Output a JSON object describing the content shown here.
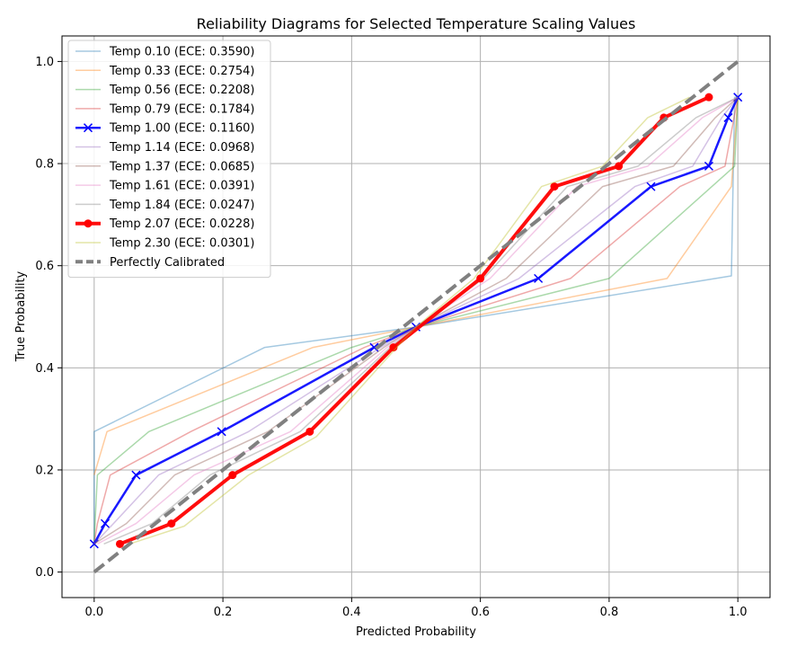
{
  "chart_data": {
    "type": "line",
    "title": "Reliability Diagrams for Selected Temperature Scaling Values",
    "xlabel": "Predicted Probability",
    "ylabel": "True Probability",
    "xlim": [
      -0.05,
      1.05
    ],
    "ylim": [
      -0.05,
      1.05
    ],
    "xticks": [
      "0.0",
      "0.2",
      "0.4",
      "0.6",
      "0.8",
      "1.0"
    ],
    "yticks": [
      "0.0",
      "0.2",
      "0.4",
      "0.6",
      "0.8",
      "1.0"
    ],
    "grid": true,
    "legend_position": "top-left",
    "series": [
      {
        "name": "Temp 0.10 (ECE: 0.3590)",
        "color": "#1f77b4",
        "alpha": 0.4,
        "width": 1.5,
        "marker": "none",
        "x": [
          0.0,
          0.0,
          0.0,
          0.265,
          0.5,
          0.99,
          0.995,
          1.0
        ],
        "y": [
          0.055,
          0.09,
          0.275,
          0.44,
          0.48,
          0.58,
          0.93,
          0.93
        ]
      },
      {
        "name": "Temp 0.33 (ECE: 0.2754)",
        "color": "#ff7f0e",
        "alpha": 0.4,
        "width": 1.5,
        "marker": "none",
        "x": [
          0.0,
          0.02,
          0.34,
          0.5,
          0.89,
          0.99,
          1.0
        ],
        "y": [
          0.19,
          0.275,
          0.44,
          0.48,
          0.575,
          0.755,
          0.93
        ]
      },
      {
        "name": "Temp 0.56 (ECE: 0.2208)",
        "color": "#2ca02c",
        "alpha": 0.4,
        "width": 1.5,
        "marker": "none",
        "x": [
          0.0,
          0.005,
          0.085,
          0.4,
          0.5,
          0.8,
          0.995,
          1.0
        ],
        "y": [
          0.06,
          0.19,
          0.275,
          0.44,
          0.48,
          0.575,
          0.795,
          0.93
        ]
      },
      {
        "name": "Temp 0.79 (ECE: 0.1784)",
        "color": "#d62728",
        "alpha": 0.4,
        "width": 1.5,
        "marker": "none",
        "x": [
          0.0,
          0.005,
          0.025,
          0.15,
          0.42,
          0.5,
          0.74,
          0.91,
          0.98,
          1.0
        ],
        "y": [
          0.055,
          0.095,
          0.19,
          0.275,
          0.44,
          0.48,
          0.575,
          0.755,
          0.795,
          0.93
        ]
      },
      {
        "name": "Temp 1.00 (ECE: 0.1160)",
        "color": "#0000ff",
        "alpha": 0.9,
        "width": 2.5,
        "marker": "x",
        "x": [
          0.0,
          0.017,
          0.065,
          0.198,
          0.435,
          0.5,
          0.69,
          0.865,
          0.955,
          0.985,
          1.0
        ],
        "y": [
          0.055,
          0.095,
          0.19,
          0.275,
          0.44,
          0.48,
          0.575,
          0.755,
          0.795,
          0.89,
          0.93
        ]
      },
      {
        "name": "Temp 1.14 (ECE: 0.0968)",
        "color": "#9467bd",
        "alpha": 0.4,
        "width": 1.5,
        "marker": "none",
        "x": [
          0.0,
          0.03,
          0.1,
          0.24,
          0.445,
          0.5,
          0.66,
          0.84,
          0.93,
          0.975,
          1.0
        ],
        "y": [
          0.055,
          0.095,
          0.19,
          0.275,
          0.44,
          0.48,
          0.575,
          0.755,
          0.795,
          0.89,
          0.93
        ]
      },
      {
        "name": "Temp 1.37 (ECE: 0.0685)",
        "color": "#8c564b",
        "alpha": 0.4,
        "width": 1.5,
        "marker": "none",
        "x": [
          0.0,
          0.05,
          0.125,
          0.27,
          0.45,
          0.5,
          0.64,
          0.79,
          0.9,
          0.965,
          1.0
        ],
        "y": [
          0.055,
          0.095,
          0.19,
          0.275,
          0.44,
          0.48,
          0.575,
          0.755,
          0.795,
          0.89,
          0.93
        ]
      },
      {
        "name": "Temp 1.61 (ECE: 0.0391)",
        "color": "#e377c2",
        "alpha": 0.4,
        "width": 1.5,
        "marker": "none",
        "x": [
          0.005,
          0.065,
          0.155,
          0.305,
          0.455,
          0.5,
          0.615,
          0.75,
          0.86,
          0.945,
          1.0
        ],
        "y": [
          0.055,
          0.095,
          0.19,
          0.275,
          0.44,
          0.48,
          0.575,
          0.755,
          0.795,
          0.89,
          0.93
        ]
      },
      {
        "name": "Temp 1.84 (ECE: 0.0247)",
        "color": "#7f7f7f",
        "alpha": 0.4,
        "width": 1.5,
        "marker": "none",
        "x": [
          0.015,
          0.09,
          0.18,
          0.32,
          0.46,
          0.5,
          0.605,
          0.735,
          0.845,
          0.935,
          1.0
        ],
        "y": [
          0.055,
          0.095,
          0.19,
          0.275,
          0.44,
          0.48,
          0.575,
          0.755,
          0.795,
          0.89,
          0.93
        ]
      },
      {
        "name": "Temp 2.07 (ECE: 0.0228)",
        "color": "#ff0000",
        "alpha": 0.95,
        "width": 4,
        "marker": "o",
        "x": [
          0.04,
          0.12,
          0.215,
          0.335,
          0.465,
          0.6,
          0.715,
          0.815,
          0.885,
          0.955
        ],
        "y": [
          0.055,
          0.095,
          0.19,
          0.275,
          0.44,
          0.575,
          0.755,
          0.795,
          0.89,
          0.93
        ]
      },
      {
        "name": "Temp 2.30 (ECE: 0.0301)",
        "color": "#bcbd22",
        "alpha": 0.4,
        "width": 1.5,
        "marker": "none",
        "x": [
          0.055,
          0.14,
          0.24,
          0.345,
          0.47,
          0.5,
          0.59,
          0.695,
          0.79,
          0.86,
          0.925
        ],
        "y": [
          0.055,
          0.09,
          0.19,
          0.265,
          0.44,
          0.48,
          0.575,
          0.755,
          0.795,
          0.89,
          0.93
        ]
      },
      {
        "name": "Perfectly Calibrated",
        "color": "#808080",
        "alpha": 1,
        "width": 4,
        "marker": "none",
        "dash": true,
        "x": [
          0.0,
          1.0
        ],
        "y": [
          0.0,
          1.0
        ]
      }
    ]
  }
}
